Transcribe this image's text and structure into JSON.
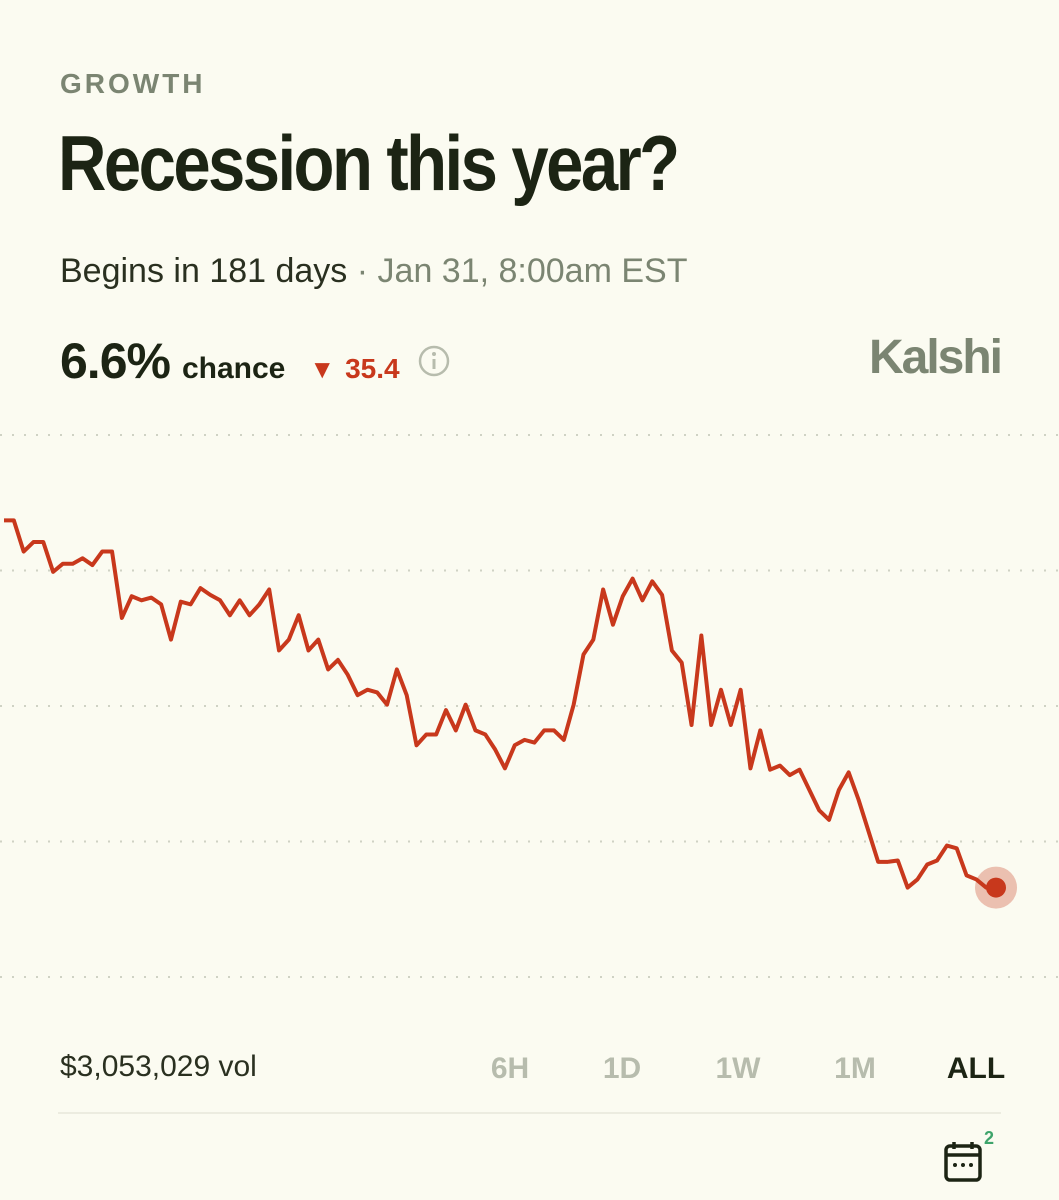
{
  "header": {
    "category": "GROWTH",
    "title": "Recession this year?",
    "begins": "Begins in 181 days",
    "date": "Jan 31, 8:00am EST"
  },
  "stats": {
    "chance_value": "6.6%",
    "chance_label": "chance",
    "change": "35.4",
    "brand": "Kalshi"
  },
  "chart_data": {
    "type": "line",
    "ylim": [
      0,
      40
    ],
    "grid": true,
    "series": [
      {
        "color": "#c8381c",
        "values": [
          33.7,
          33.7,
          31.4,
          32.1,
          32.1,
          29.9,
          30.5,
          30.5,
          30.9,
          30.4,
          31.4,
          31.4,
          26.5,
          28.1,
          27.8,
          28.0,
          27.5,
          24.9,
          27.7,
          27.5,
          28.7,
          28.2,
          27.8,
          26.7,
          27.8,
          26.7,
          27.5,
          28.6,
          24.1,
          24.9,
          26.7,
          24.1,
          24.9,
          22.7,
          23.4,
          22.3,
          20.8,
          21.2,
          21.0,
          20.1,
          22.7,
          20.8,
          17.1,
          17.9,
          17.9,
          19.7,
          18.2,
          20.1,
          18.2,
          17.9,
          16.8,
          15.4,
          17.1,
          17.5,
          17.3,
          18.2,
          18.2,
          17.5,
          20.1,
          23.8,
          24.9,
          28.6,
          26.0,
          28.1,
          29.4,
          27.8,
          29.2,
          28.2,
          24.1,
          23.2,
          18.6,
          25.2,
          18.6,
          21.2,
          18.6,
          21.2,
          15.4,
          18.2,
          15.3,
          15.6,
          14.9,
          15.3,
          13.8,
          12.3,
          11.6,
          13.8,
          15.1,
          13.1,
          10.8,
          8.5,
          8.5,
          8.6,
          6.6,
          7.2,
          8.3,
          8.6,
          9.7,
          9.5,
          7.5,
          7.2,
          6.6,
          6.6
        ]
      }
    ]
  },
  "footer": {
    "volume": "$3,053,029 vol",
    "ranges": [
      "6H",
      "1D",
      "1W",
      "1M",
      "ALL"
    ],
    "badge": "2"
  }
}
